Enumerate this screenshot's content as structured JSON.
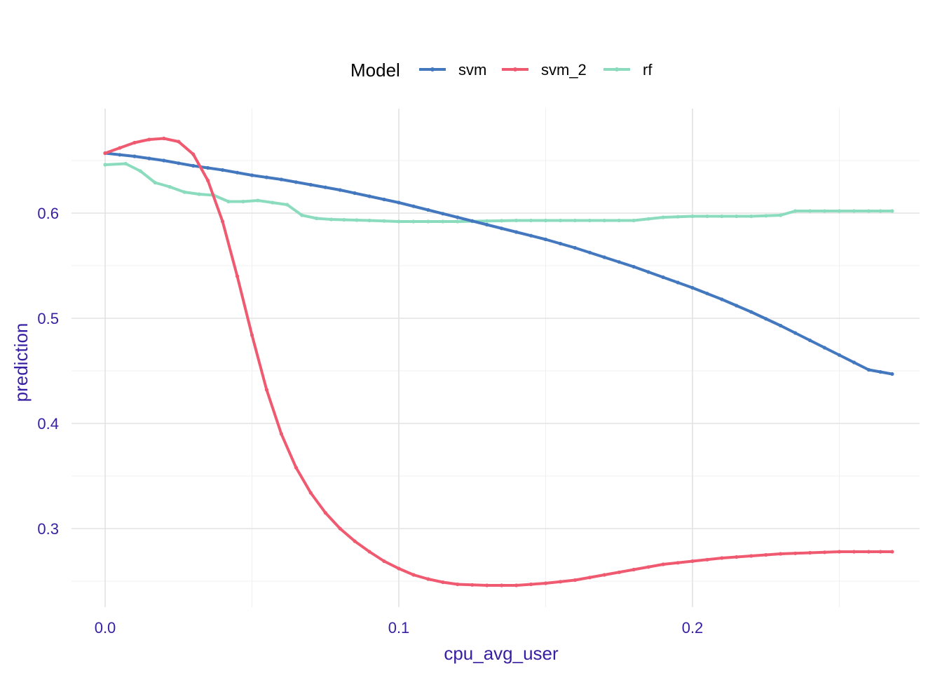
{
  "chart_data": {
    "type": "line",
    "xlabel": "cpu_avg_user",
    "ylabel": "prediction",
    "xlim": [
      -0.012,
      0.275
    ],
    "ylim": [
      0.23,
      0.67
    ],
    "x_ticks": [
      0.0,
      0.1,
      0.2
    ],
    "x_tick_labels": [
      "0.0",
      "0.1",
      "0.2"
    ],
    "y_ticks": [
      0.3,
      0.4,
      0.5,
      0.6
    ],
    "y_tick_labels": [
      "0.3",
      "0.4",
      "0.5",
      "0.6"
    ],
    "grid": true,
    "legend": {
      "title": "Model",
      "position": "top"
    },
    "series": [
      {
        "name": "svm",
        "color": "#4378bf",
        "points": [
          [
            0.0,
            0.657
          ],
          [
            0.01,
            0.654
          ],
          [
            0.02,
            0.65
          ],
          [
            0.03,
            0.645
          ],
          [
            0.04,
            0.641
          ],
          [
            0.05,
            0.636
          ],
          [
            0.06,
            0.632
          ],
          [
            0.07,
            0.627
          ],
          [
            0.08,
            0.622
          ],
          [
            0.09,
            0.616
          ],
          [
            0.1,
            0.61
          ],
          [
            0.11,
            0.603
          ],
          [
            0.12,
            0.596
          ],
          [
            0.13,
            0.589
          ],
          [
            0.14,
            0.582
          ],
          [
            0.15,
            0.575
          ],
          [
            0.16,
            0.567
          ],
          [
            0.17,
            0.558
          ],
          [
            0.18,
            0.549
          ],
          [
            0.19,
            0.539
          ],
          [
            0.2,
            0.529
          ],
          [
            0.21,
            0.518
          ],
          [
            0.22,
            0.506
          ],
          [
            0.23,
            0.493
          ],
          [
            0.24,
            0.479
          ],
          [
            0.25,
            0.465
          ],
          [
            0.26,
            0.451
          ],
          [
            0.268,
            0.447
          ]
        ]
      },
      {
        "name": "svm_2",
        "color": "#f05a71",
        "points": [
          [
            0.0,
            0.657
          ],
          [
            0.005,
            0.662
          ],
          [
            0.01,
            0.667
          ],
          [
            0.015,
            0.67
          ],
          [
            0.02,
            0.671
          ],
          [
            0.025,
            0.668
          ],
          [
            0.03,
            0.656
          ],
          [
            0.035,
            0.631
          ],
          [
            0.04,
            0.592
          ],
          [
            0.045,
            0.54
          ],
          [
            0.05,
            0.484
          ],
          [
            0.055,
            0.432
          ],
          [
            0.06,
            0.39
          ],
          [
            0.065,
            0.358
          ],
          [
            0.07,
            0.334
          ],
          [
            0.075,
            0.315
          ],
          [
            0.08,
            0.3
          ],
          [
            0.085,
            0.288
          ],
          [
            0.09,
            0.278
          ],
          [
            0.095,
            0.269
          ],
          [
            0.1,
            0.262
          ],
          [
            0.105,
            0.256
          ],
          [
            0.11,
            0.252
          ],
          [
            0.115,
            0.249
          ],
          [
            0.12,
            0.247
          ],
          [
            0.13,
            0.246
          ],
          [
            0.14,
            0.246
          ],
          [
            0.15,
            0.248
          ],
          [
            0.16,
            0.251
          ],
          [
            0.17,
            0.256
          ],
          [
            0.18,
            0.261
          ],
          [
            0.19,
            0.266
          ],
          [
            0.2,
            0.269
          ],
          [
            0.21,
            0.272
          ],
          [
            0.22,
            0.274
          ],
          [
            0.23,
            0.276
          ],
          [
            0.24,
            0.277
          ],
          [
            0.25,
            0.278
          ],
          [
            0.26,
            0.278
          ],
          [
            0.268,
            0.278
          ]
        ]
      },
      {
        "name": "rf",
        "color": "#8bdcbe",
        "points": [
          [
            0.0,
            0.646
          ],
          [
            0.007,
            0.647
          ],
          [
            0.012,
            0.64
          ],
          [
            0.017,
            0.629
          ],
          [
            0.022,
            0.625
          ],
          [
            0.027,
            0.62
          ],
          [
            0.032,
            0.618
          ],
          [
            0.037,
            0.617
          ],
          [
            0.042,
            0.611
          ],
          [
            0.047,
            0.611
          ],
          [
            0.052,
            0.612
          ],
          [
            0.057,
            0.61
          ],
          [
            0.062,
            0.608
          ],
          [
            0.067,
            0.598
          ],
          [
            0.072,
            0.595
          ],
          [
            0.077,
            0.594
          ],
          [
            0.09,
            0.593
          ],
          [
            0.1,
            0.592
          ],
          [
            0.12,
            0.592
          ],
          [
            0.14,
            0.593
          ],
          [
            0.16,
            0.593
          ],
          [
            0.18,
            0.593
          ],
          [
            0.19,
            0.596
          ],
          [
            0.2,
            0.597
          ],
          [
            0.21,
            0.597
          ],
          [
            0.22,
            0.597
          ],
          [
            0.23,
            0.598
          ],
          [
            0.235,
            0.602
          ],
          [
            0.25,
            0.602
          ],
          [
            0.26,
            0.602
          ],
          [
            0.268,
            0.602
          ]
        ]
      }
    ]
  }
}
